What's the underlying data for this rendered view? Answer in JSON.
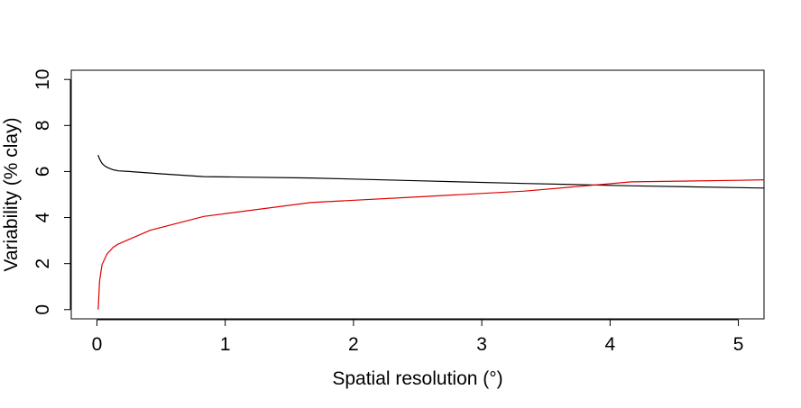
{
  "chart_data": {
    "type": "line",
    "title": "",
    "xlabel": "Spatial resolution (°)",
    "ylabel": "Variability (% clay)",
    "xlim": [
      -0.2,
      5.2
    ],
    "ylim": [
      -0.4,
      10.4
    ],
    "xticks": [
      0,
      1,
      2,
      3,
      4,
      5
    ],
    "yticks": [
      0,
      2,
      4,
      6,
      8,
      10
    ],
    "grid": false,
    "legend": "none",
    "series": [
      {
        "color": "#000000",
        "x": [
          0.01,
          0.02,
          0.04,
          0.06,
          0.08,
          0.1,
          0.125,
          0.167,
          0.25,
          0.5,
          0.833,
          1.667,
          2.5,
          3.333,
          4.167,
          5.0,
          5.2
        ],
        "y": [
          6.7,
          6.55,
          6.35,
          6.25,
          6.18,
          6.13,
          6.08,
          6.03,
          6.0,
          5.9,
          5.78,
          5.72,
          5.6,
          5.48,
          5.38,
          5.3,
          5.28
        ]
      },
      {
        "color": "#e00000",
        "x": [
          0.01,
          0.02,
          0.03,
          0.04,
          0.06,
          0.08,
          0.1,
          0.125,
          0.167,
          0.25,
          0.417,
          0.833,
          1.667,
          2.5,
          3.333,
          4.167,
          5.0,
          5.2
        ],
        "y": [
          0.02,
          1.2,
          1.6,
          1.95,
          2.2,
          2.42,
          2.55,
          2.7,
          2.85,
          3.05,
          3.45,
          4.05,
          4.65,
          4.9,
          5.15,
          5.55,
          5.62,
          5.64
        ]
      }
    ]
  }
}
